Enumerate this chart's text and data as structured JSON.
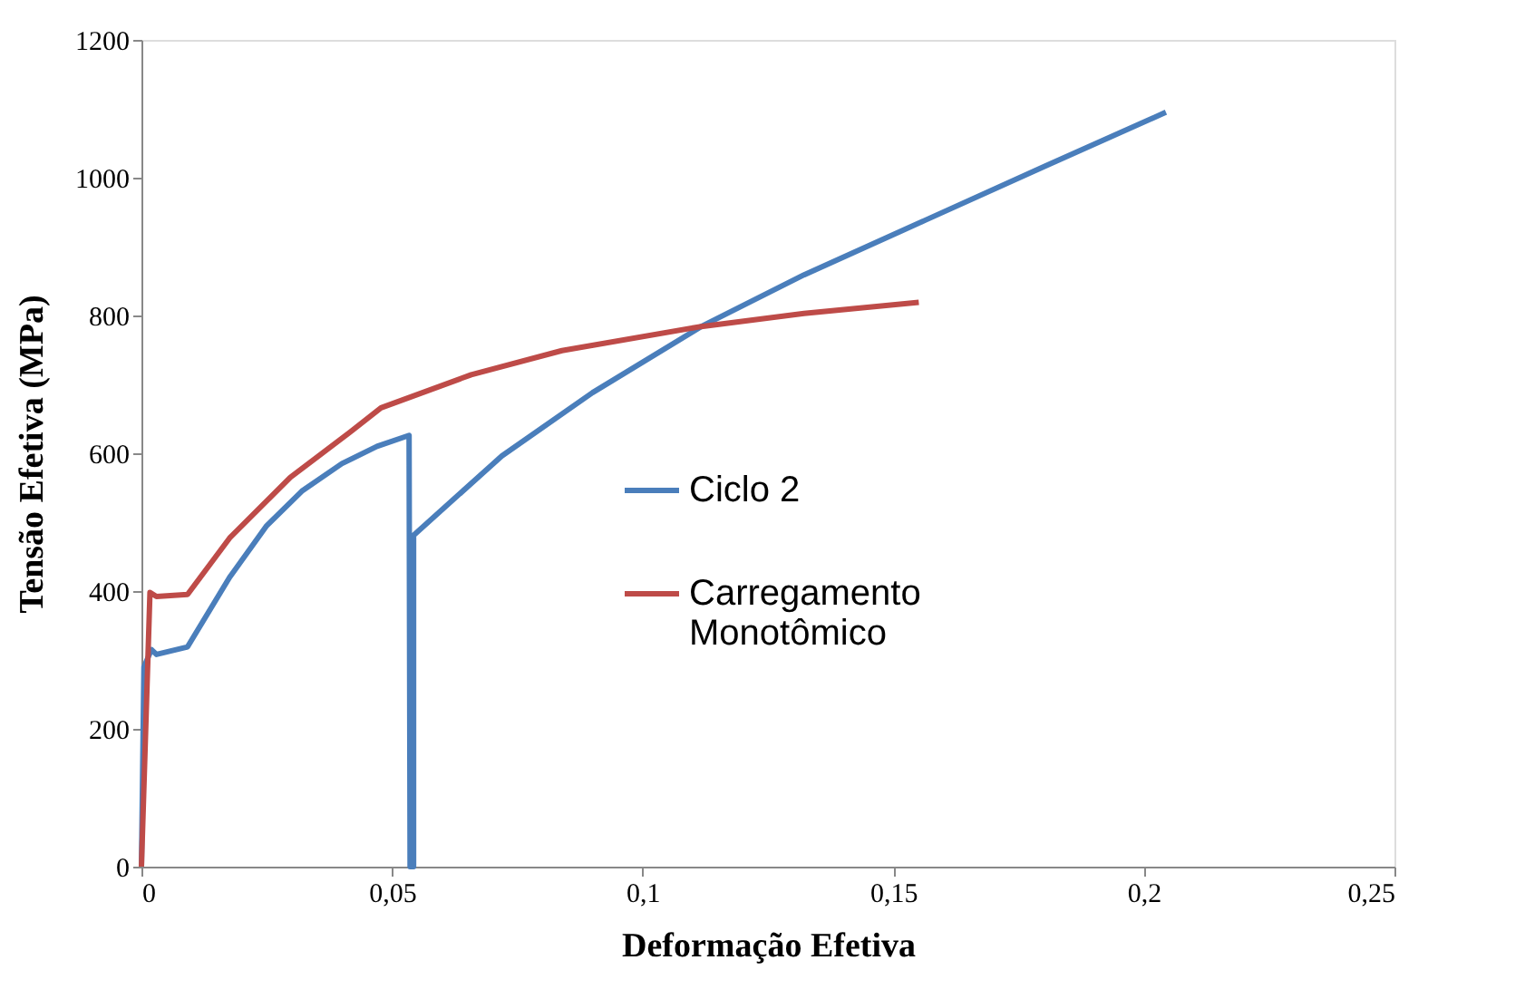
{
  "chart_data": {
    "type": "line",
    "xlabel": "Deformação Efetiva",
    "ylabel": "Tensão Efetiva (MPa)",
    "xlim": [
      0,
      0.25
    ],
    "ylim": [
      0,
      1200
    ],
    "xticks": [
      0,
      {
        "value": 0.05,
        "label": "0,05"
      },
      {
        "value": 0.1,
        "label": "0,1"
      },
      {
        "value": 0.15,
        "label": "0,15"
      },
      {
        "value": 0.2,
        "label": "0,2"
      },
      {
        "value": 0.25,
        "label": "0,25"
      }
    ],
    "yticks": [
      0,
      200,
      400,
      600,
      800,
      1000,
      1200
    ],
    "grid": false,
    "legend": "center",
    "line_style": "solid",
    "marker": "none",
    "series": [
      {
        "name": "Ciclo 2",
        "color": "#4a7ebb",
        "x": [
          0,
          0.0005,
          0.002,
          0.003,
          0.0092,
          0.0176,
          0.025,
          0.032,
          0.04,
          0.047,
          0.0534,
          0.0536,
          0.0543,
          0.0543,
          0.0719,
          0.09,
          0.1117,
          0.1322,
          0.1563,
          0.1804,
          0.2044
        ],
        "values": [
          0,
          290,
          315,
          308,
          319,
          420,
          495,
          545,
          585,
          610,
          626,
          0,
          0,
          481,
          596,
          688,
          784,
          859,
          938,
          1017,
          1095
        ]
      },
      {
        "name": "Carregamento Monotômico",
        "color": "#be4b48",
        "x": [
          0,
          0.0017,
          0.003,
          0.0092,
          0.0176,
          0.0297,
          0.0417,
          0.0478,
          0.0658,
          0.0839,
          0.1117,
          0.1322,
          0.1551
        ],
        "values": [
          0,
          398,
          392,
          395,
          477,
          565,
          631,
          666,
          714,
          749,
          784,
          803,
          819
        ]
      }
    ]
  }
}
